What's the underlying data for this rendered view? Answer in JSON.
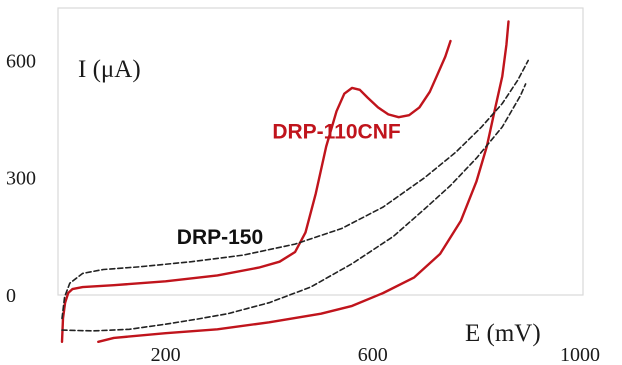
{
  "chart_data": {
    "type": "line",
    "title": "",
    "xlabel": "E (mV)",
    "ylabel": "I (μA)",
    "xlim": [
      0,
      1000
    ],
    "ylim": [
      -100,
      650
    ],
    "x_ticks": [
      {
        "value": 200,
        "label": "200"
      },
      {
        "value": 600,
        "label": "600"
      },
      {
        "value": 1000,
        "label": "1000"
      }
    ],
    "y_ticks": [
      {
        "value": 0,
        "label": "0"
      },
      {
        "value": 300,
        "label": "300"
      },
      {
        "value": 600,
        "label": "600"
      }
    ],
    "grid": false,
    "series": [
      {
        "name": "DRP-110CNF",
        "color": "#c0141c",
        "style": "solid",
        "label_anchor": [
          530,
          400
        ],
        "segments": [
          [
            [
              0,
              -120
            ],
            [
              2,
              -60
            ],
            [
              6,
              -20
            ],
            [
              12,
              5
            ],
            [
              20,
              15
            ],
            [
              40,
              20
            ],
            [
              100,
              25
            ],
            [
              200,
              35
            ],
            [
              300,
              50
            ],
            [
              380,
              70
            ],
            [
              420,
              85
            ],
            [
              450,
              110
            ],
            [
              470,
              160
            ],
            [
              490,
              260
            ],
            [
              510,
              380
            ],
            [
              530,
              470
            ],
            [
              545,
              515
            ],
            [
              560,
              530
            ],
            [
              575,
              525
            ],
            [
              590,
              505
            ],
            [
              610,
              480
            ],
            [
              630,
              462
            ],
            [
              650,
              455
            ],
            [
              670,
              460
            ],
            [
              690,
              480
            ],
            [
              710,
              520
            ],
            [
              725,
              565
            ],
            [
              740,
              610
            ],
            [
              750,
              650
            ]
          ],
          [
            [
              70,
              -120
            ],
            [
              100,
              -110
            ],
            [
              200,
              -98
            ],
            [
              300,
              -88
            ],
            [
              400,
              -70
            ],
            [
              500,
              -48
            ],
            [
              560,
              -28
            ],
            [
              620,
              5
            ],
            [
              680,
              45
            ],
            [
              730,
              105
            ],
            [
              770,
              190
            ],
            [
              800,
              290
            ],
            [
              820,
              380
            ],
            [
              835,
              470
            ],
            [
              850,
              560
            ],
            [
              858,
              640
            ],
            [
              862,
              700
            ]
          ]
        ]
      },
      {
        "name": "DRP-150",
        "color": "#222222",
        "style": "dashed",
        "label_anchor": [
          305,
          130
        ],
        "segments": [
          [
            [
              0,
              -60
            ],
            [
              5,
              -5
            ],
            [
              15,
              30
            ],
            [
              40,
              55
            ],
            [
              80,
              65
            ],
            [
              150,
              72
            ],
            [
              250,
              85
            ],
            [
              350,
              102
            ],
            [
              450,
              130
            ],
            [
              540,
              170
            ],
            [
              620,
              225
            ],
            [
              700,
              300
            ],
            [
              760,
              365
            ],
            [
              810,
              430
            ],
            [
              850,
              490
            ],
            [
              880,
              550
            ],
            [
              900,
              600
            ]
          ],
          [
            [
              0,
              -90
            ],
            [
              60,
              -92
            ],
            [
              130,
              -88
            ],
            [
              200,
              -75
            ],
            [
              260,
              -62
            ],
            [
              320,
              -48
            ],
            [
              400,
              -20
            ],
            [
              480,
              20
            ],
            [
              560,
              80
            ],
            [
              640,
              150
            ],
            [
              700,
              220
            ],
            [
              750,
              280
            ],
            [
              800,
              350
            ],
            [
              850,
              430
            ],
            [
              885,
              510
            ],
            [
              895,
              540
            ]
          ]
        ]
      }
    ]
  }
}
